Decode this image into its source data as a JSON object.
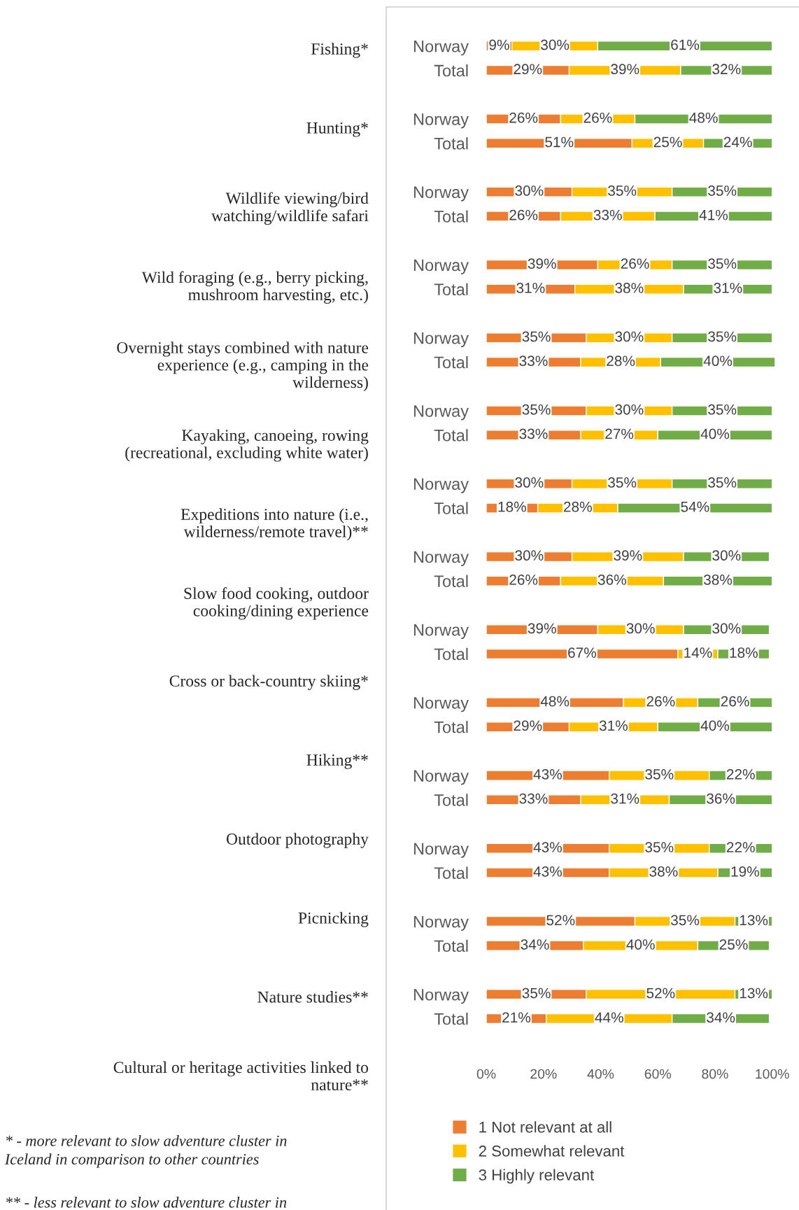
{
  "chart_data": {
    "type": "bar",
    "orientation": "horizontal",
    "stacked": true,
    "categories": [
      "Norway",
      "Total",
      null,
      "Norway",
      "Total",
      null,
      "Norway",
      "Total",
      null,
      "Norway",
      "Total",
      null,
      "Norway",
      "Total",
      null,
      "Norway",
      "Total",
      null,
      "Norway",
      "Total",
      null,
      "Norway",
      "Total",
      null,
      "Norway",
      "Total",
      null,
      "Norway",
      "Total",
      null,
      "Norway",
      "Total",
      null,
      "Norway",
      "Total",
      null,
      "Norway",
      "Total",
      null,
      "Norway",
      "Total"
    ],
    "series": [
      {
        "name": "1 Not relevant at all",
        "color": "#ed7d31",
        "values": [
          9,
          29,
          null,
          26,
          51,
          null,
          30,
          26,
          null,
          39,
          31,
          null,
          35,
          33,
          null,
          35,
          33,
          null,
          30,
          18,
          null,
          30,
          26,
          null,
          39,
          67,
          null,
          48,
          29,
          null,
          43,
          33,
          null,
          43,
          43,
          null,
          52,
          34,
          null,
          35,
          21
        ],
        "value_labels": [
          "9%",
          "29%",
          null,
          "26%",
          "51%",
          null,
          "30%",
          "26%",
          null,
          "39%",
          "31%",
          null,
          "35%",
          "33%",
          null,
          "35%",
          "33%",
          null,
          "30%",
          "18%",
          null,
          "30%",
          "26%",
          null,
          "39%",
          "67%",
          null,
          "48%",
          "29%",
          null,
          "43%",
          "33%",
          null,
          "43%",
          "43%",
          null,
          "52%",
          "34%",
          null,
          "35%",
          "21%"
        ]
      },
      {
        "name": "2 Somewhat relevant",
        "color": "#ffc000",
        "values": [
          30,
          39,
          null,
          26,
          25,
          null,
          35,
          33,
          null,
          26,
          38,
          null,
          30,
          28,
          null,
          30,
          27,
          null,
          35,
          28,
          null,
          39,
          36,
          null,
          30,
          14,
          null,
          26,
          31,
          null,
          35,
          31,
          null,
          35,
          38,
          null,
          35,
          40,
          null,
          52,
          44
        ],
        "value_labels": [
          "30%",
          "39%",
          null,
          "26%",
          "25%",
          null,
          "35%",
          "33%",
          null,
          "26%",
          "38%",
          null,
          "30%",
          "28%",
          null,
          "30%",
          "27%",
          null,
          "35%",
          "28%",
          null,
          "39%",
          "36%",
          null,
          "30%",
          "14%",
          null,
          "26%",
          "31%",
          null,
          "35%",
          "31%",
          null,
          "35%",
          "38%",
          null,
          "35%",
          "40%",
          null,
          "52%",
          "44%"
        ]
      },
      {
        "name": "3 Highly relevant",
        "color": "#70ad47",
        "values": [
          61,
          32,
          null,
          48,
          24,
          null,
          35,
          41,
          null,
          35,
          31,
          null,
          35,
          40,
          null,
          35,
          40,
          null,
          35,
          54,
          null,
          30,
          38,
          null,
          30,
          18,
          null,
          26,
          40,
          null,
          22,
          36,
          null,
          22,
          19,
          null,
          13,
          25,
          null,
          13,
          34
        ],
        "value_labels": [
          "61%",
          "32%",
          null,
          "48%",
          "24%",
          null,
          "35%",
          "41%",
          null,
          "35%",
          "31%",
          null,
          "35%",
          "40%",
          null,
          "35%",
          "40%",
          null,
          "35%",
          "54%",
          null,
          "30%",
          "38%",
          null,
          "30%",
          "18%",
          null,
          "26%",
          "40%",
          null,
          "22%",
          "36%",
          null,
          "22%",
          "19%",
          null,
          "13%",
          "25%",
          null,
          "13%",
          "34%"
        ]
      }
    ],
    "xlim": [
      0,
      101
    ],
    "xticks": [
      {
        "value": 0,
        "label": "0%"
      },
      {
        "value": 20,
        "label": "20%"
      },
      {
        "value": 40,
        "label": "40%"
      },
      {
        "value": 60,
        "label": "60%"
      },
      {
        "value": 80,
        "label": "80%"
      },
      {
        "value": 100,
        "label": "100%"
      }
    ],
    "legend": "bottom",
    "annotations": [
      "Fishing*",
      "Hunting*",
      "Wildlife viewing/bird\nwatching/wildlife safari",
      "Wild foraging (e.g., berry picking,\nmushroom harvesting, etc.)",
      "Overnight stays combined with nature\nexperience (e.g., camping in the\nwilderness)",
      "Kayaking, canoeing, rowing\n(recreational, excluding white water)",
      "Expeditions into nature (i.e.,\nwilderness/remote travel)**",
      "Slow food cooking, outdoor\ncooking/dining experience",
      "Cross or back-country skiing*",
      "Hiking**",
      "Outdoor photography",
      "Picnicking",
      "Nature studies**",
      "Cultural or heritage activities linked to\nnature**",
      "* - more relevant to slow adventure cluster in\nIceland in comparison to other countries",
      "** - less relevant to slow adventure cluster in"
    ]
  }
}
